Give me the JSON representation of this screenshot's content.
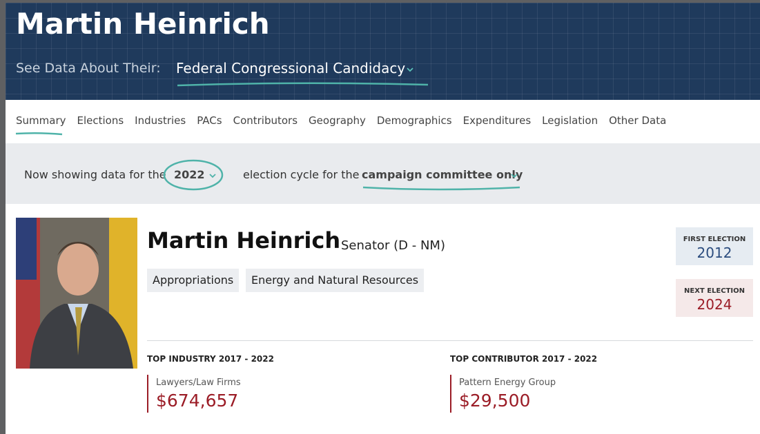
{
  "header": {
    "title": "Martin Heinrich",
    "see_label": "See Data About Their:",
    "selected_view": "Federal Congressional Candidacy"
  },
  "nav": {
    "tabs": [
      "Summary",
      "Elections",
      "Industries",
      "PACs",
      "Contributors",
      "Geography",
      "Demographics",
      "Expenditures",
      "Legislation",
      "Other Data"
    ]
  },
  "cycle": {
    "prefix": "Now showing data for the",
    "year": "2022",
    "middle": "election cycle for the",
    "committee": "campaign committee only"
  },
  "profile": {
    "name": "Martin Heinrich",
    "office": "Senator (D - NM)",
    "committees": [
      "Appropriations",
      "Energy and Natural Resources"
    ]
  },
  "first_election": {
    "label": "FIRST ELECTION",
    "value": "2012"
  },
  "next_election": {
    "label": "NEXT ELECTION",
    "value": "2024"
  },
  "top_industry": {
    "label": "TOP INDUSTRY 2017 - 2022",
    "name": "Lawyers/Law Firms",
    "amount": "$674,657"
  },
  "top_contributor": {
    "label": "TOP CONTRIBUTOR 2017 - 2022",
    "name": "Pattern Energy Group",
    "amount": "$29,500"
  }
}
